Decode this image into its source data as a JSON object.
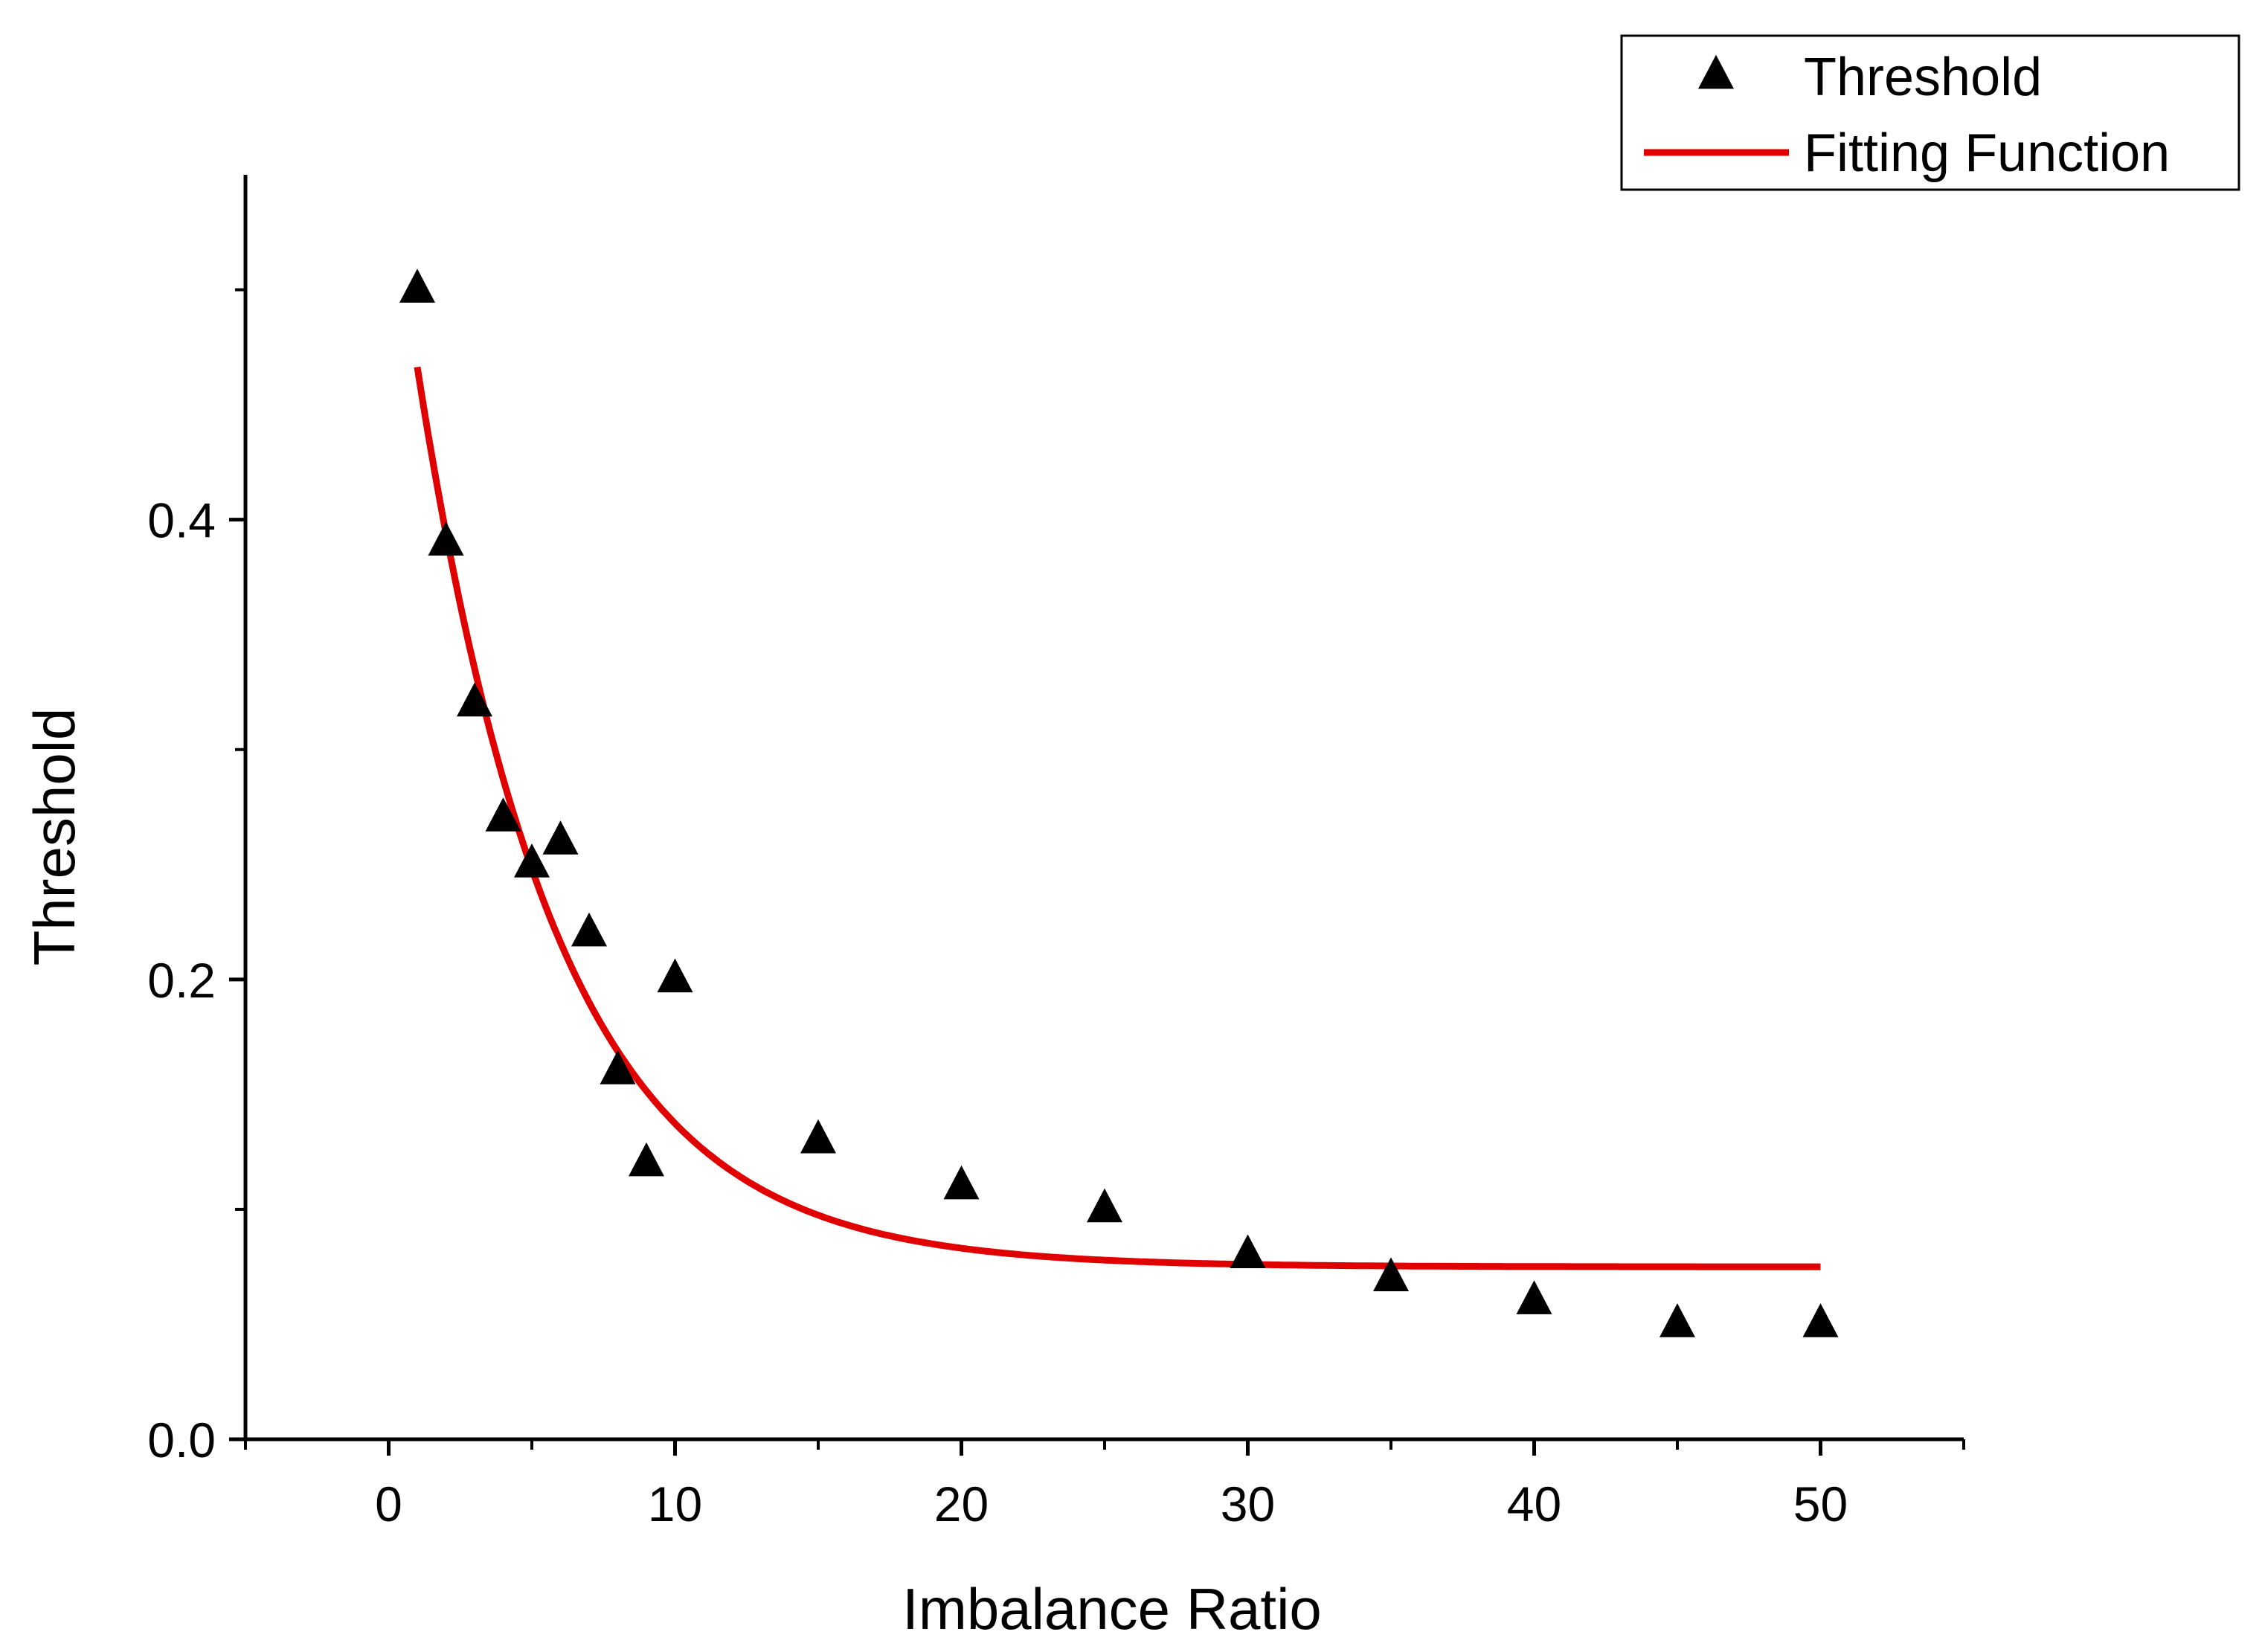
{
  "chart_data": {
    "type": "scatter",
    "title": "",
    "xlabel": "Imbalance Ratio",
    "ylabel": "Threshold",
    "xlim": [
      -5,
      55
    ],
    "ylim": [
      0.0,
      0.55
    ],
    "xticks": [
      0,
      10,
      20,
      30,
      40,
      50
    ],
    "xtick_labels": [
      "0",
      "10",
      "20",
      "30",
      "40",
      "50"
    ],
    "yticks": [
      0.0,
      0.2,
      0.4
    ],
    "ytick_labels": [
      "0.0",
      "0.2",
      "0.4"
    ],
    "grid": false,
    "legend_position": "top-right",
    "series": [
      {
        "name": "Threshold",
        "kind": "scatter",
        "marker": "triangle",
        "color": "#000000",
        "x": [
          1,
          2,
          3,
          4,
          5,
          6,
          7,
          8,
          9,
          10,
          15,
          20,
          25,
          30,
          35,
          40,
          45,
          50
        ],
        "y": [
          0.5,
          0.39,
          0.32,
          0.27,
          0.25,
          0.26,
          0.22,
          0.16,
          0.12,
          0.2,
          0.13,
          0.11,
          0.1,
          0.08,
          0.07,
          0.06,
          0.05,
          0.05
        ]
      },
      {
        "name": "Fitting Function",
        "kind": "line",
        "color": "#e00000",
        "model": "y = y0 + A * exp(-x / t)",
        "params": {
          "y0": 0.075,
          "A": 0.48,
          "t": 4.9
        },
        "x_range": [
          1,
          50
        ]
      }
    ]
  }
}
